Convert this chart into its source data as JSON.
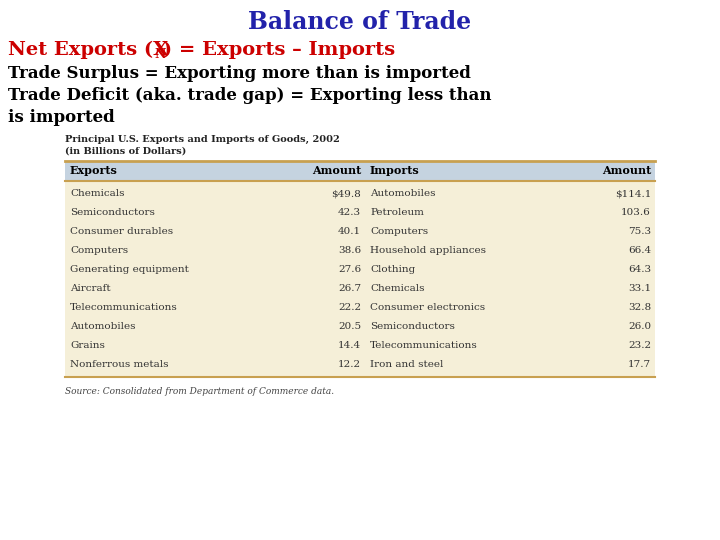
{
  "title": "Balance of Trade",
  "title_color": "#2222aa",
  "line2_color": "#cc0000",
  "line3": "Trade Surplus = Exporting more than is imported",
  "line4a": "Trade Deficit (aka. trade gap) = Exporting less than",
  "line4b": "is imported",
  "body_color": "#000000",
  "table_title": "Principal U.S. Exports and Imports of Goods, 2002",
  "table_subtitle": "(in Billions of Dollars)",
  "table_header_bg": "#c5d3e0",
  "table_body_bg": "#f5efd8",
  "table_border_color": "#c8a050",
  "source_text": "Source: Consolidated from Department of Commerce data.",
  "header_cols": [
    "Exports",
    "Amount",
    "Imports",
    "Amount"
  ],
  "exports": [
    [
      "Chemicals",
      "$49.8"
    ],
    [
      "Semiconductors",
      "42.3"
    ],
    [
      "Consumer durables",
      "40.1"
    ],
    [
      "Computers",
      "38.6"
    ],
    [
      "Generating equipment",
      "27.6"
    ],
    [
      "Aircraft",
      "26.7"
    ],
    [
      "Telecommunications",
      "22.2"
    ],
    [
      "Automobiles",
      "20.5"
    ],
    [
      "Grains",
      "14.4"
    ],
    [
      "Nonferrous metals",
      "12.2"
    ]
  ],
  "imports": [
    [
      "Automobiles",
      "$114.1"
    ],
    [
      "Petroleum",
      "103.6"
    ],
    [
      "Computers",
      "75.3"
    ],
    [
      "Household appliances",
      "66.4"
    ],
    [
      "Clothing",
      "64.3"
    ],
    [
      "Chemicals",
      "33.1"
    ],
    [
      "Consumer electronics",
      "32.8"
    ],
    [
      "Semiconductors",
      "26.0"
    ],
    [
      "Telecommunications",
      "23.2"
    ],
    [
      "Iron and steel",
      "17.7"
    ]
  ]
}
